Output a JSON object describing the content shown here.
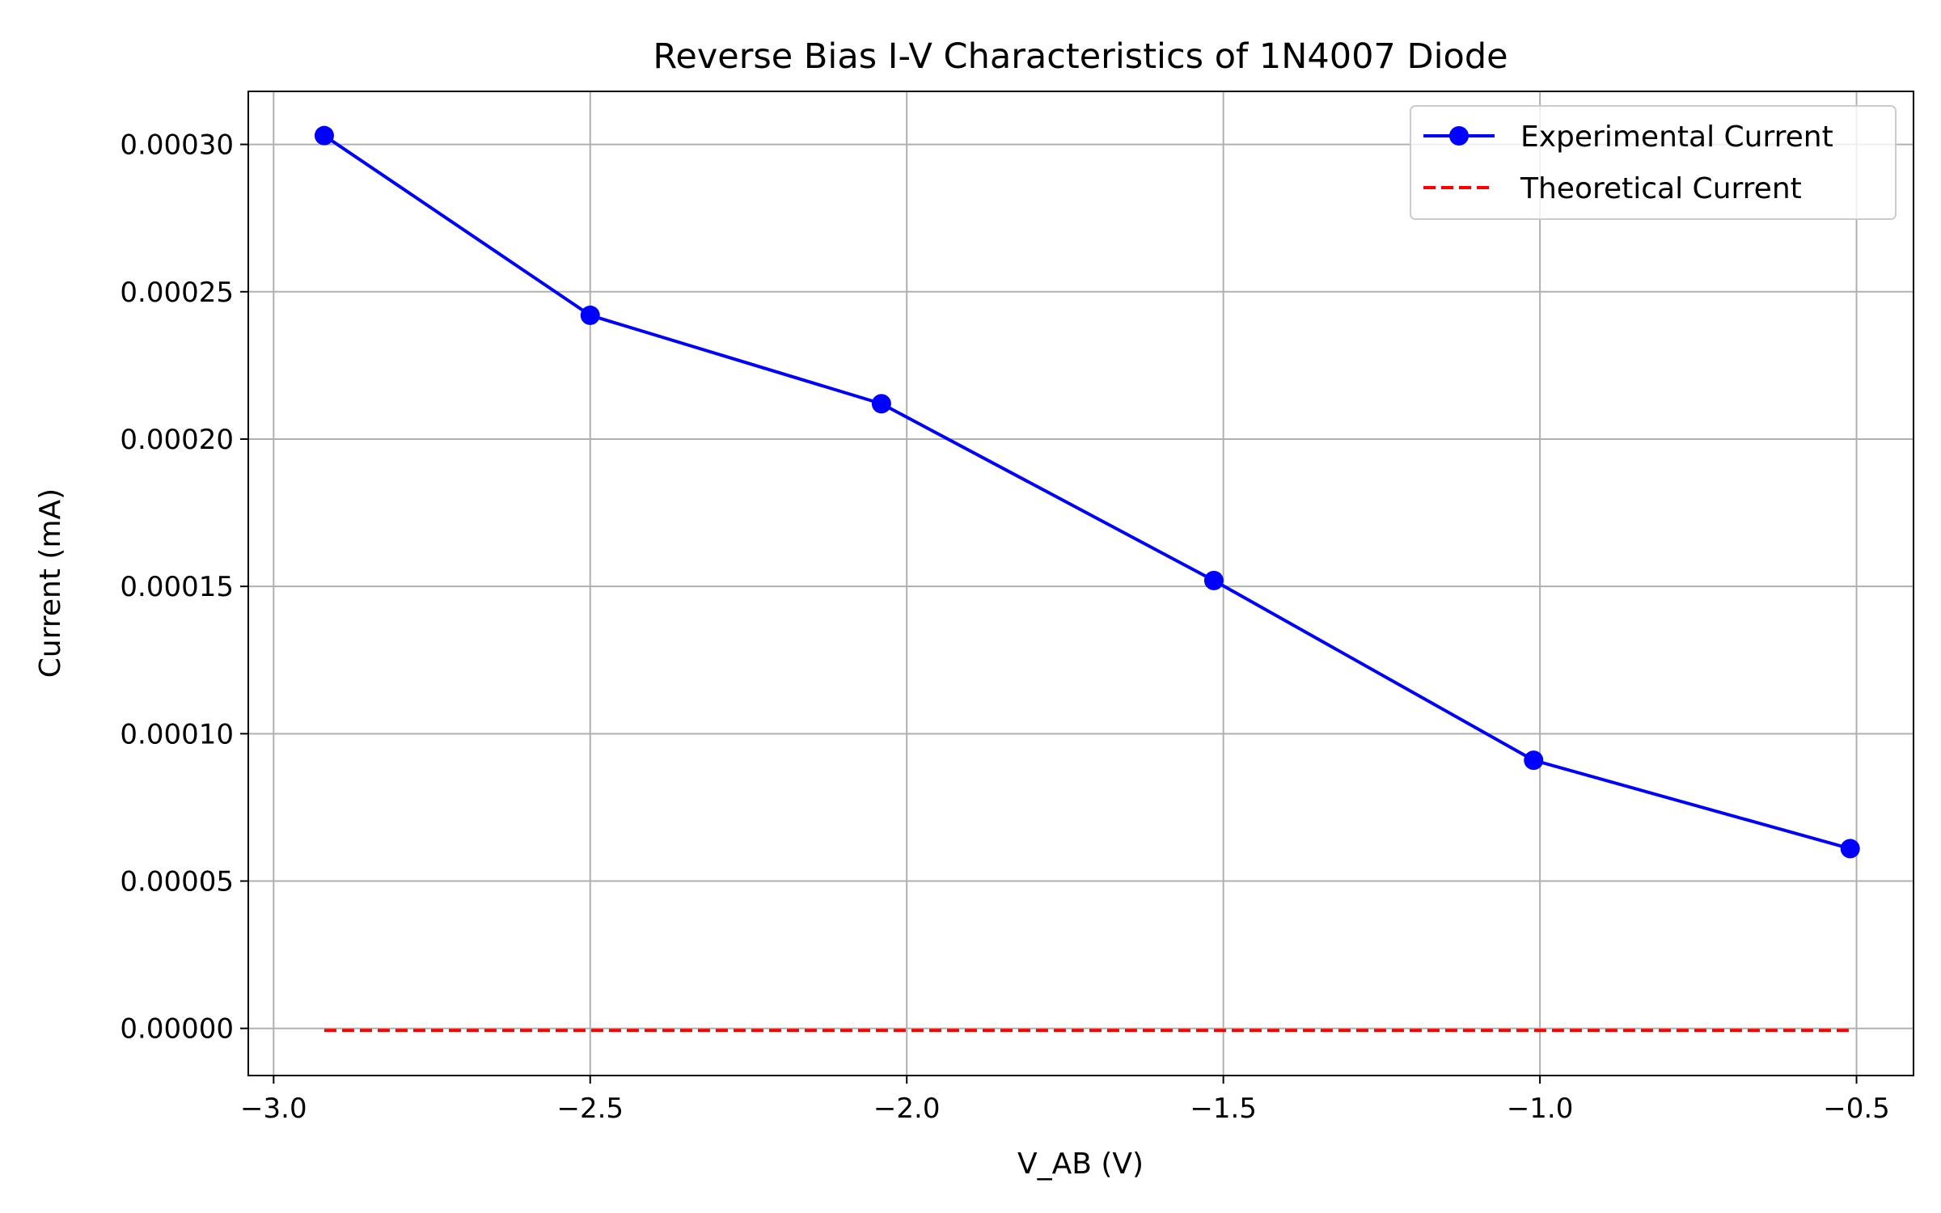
{
  "chart_data": {
    "type": "line",
    "title": "Reverse Bias I-V Characteristics of 1N4007 Diode",
    "xlabel": "V_AB (V)",
    "ylabel": "Current (mA)",
    "xlim": [
      -3.04,
      -0.41
    ],
    "ylim": [
      -1.6e-05,
      0.000318
    ],
    "xticks": [
      -3.0,
      -2.5,
      -2.0,
      -1.5,
      -1.0,
      -0.5
    ],
    "xtick_labels": [
      "−3.0",
      "−2.5",
      "−2.0",
      "−1.5",
      "−1.0",
      "−0.5"
    ],
    "yticks": [
      0,
      5e-05,
      0.0001,
      0.00015,
      0.0002,
      0.00025,
      0.0003
    ],
    "ytick_labels": [
      "0.00000",
      "0.00005",
      "0.00010",
      "0.00015",
      "0.00020",
      "0.00025",
      "0.00030"
    ],
    "grid": true,
    "legend_position": "top-right",
    "series": [
      {
        "name": "Experimental Current",
        "style": "solid-with-circle-markers",
        "color": "#0000ff",
        "x": [
          -2.92,
          -2.5,
          -2.04,
          -1.515,
          -1.01,
          -0.51
        ],
        "y": [
          0.000303,
          0.000242,
          0.000212,
          0.000152,
          9.1e-05,
          6.1e-05
        ]
      },
      {
        "name": "Theoretical Current",
        "style": "dashed",
        "color": "#ff0000",
        "x": [
          -2.92,
          -2.5,
          -2.04,
          -1.515,
          -1.01,
          -0.51
        ],
        "y": [
          -7e-07,
          -7e-07,
          -7e-07,
          -7e-07,
          -7e-07,
          -7e-07
        ]
      }
    ]
  }
}
